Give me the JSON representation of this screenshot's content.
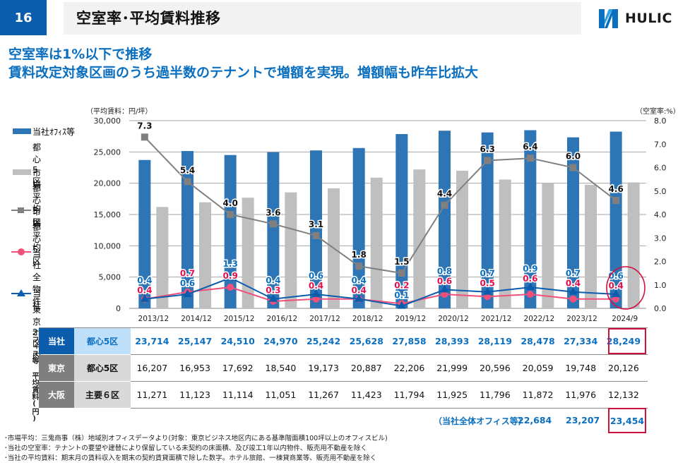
{
  "header": {
    "page_number": "16",
    "title": "空室率･平均賃料推移",
    "logo_text": "HULIC",
    "brand_color": "#0b5cad"
  },
  "headlines": [
    "空室率は1%以下で推移",
    "賃料改定対象区画のうち過半数のテナントで増額を実現。増額幅も昨年比拡大"
  ],
  "legend": [
    {
      "line1": "当社ｵﾌｨｽ等",
      "line2": "都心5区",
      "marker": "bar",
      "color": "#2e75b6"
    },
    {
      "line1": "市場平均",
      "line2": "都心5区",
      "marker": "bar",
      "color": "#bfbfbf"
    },
    {
      "line1": "市場平均",
      "line2": "都心5区",
      "marker": "square-line",
      "color": "#808080"
    },
    {
      "line1": "当社全物件",
      "line2": "",
      "marker": "circle-line",
      "color": "#f0507a"
    },
    {
      "line1": "当社",
      "line2": "東京23区内",
      "marker": "triangle-line",
      "color": "#0b5cad"
    }
  ],
  "chart_data": {
    "type": "bar",
    "title": "",
    "ylabel": "（平均賃料：円/坪）",
    "y2label": "（空室率:%）",
    "ylim": [
      0,
      30000
    ],
    "y2lim": [
      0,
      8.0
    ],
    "yticks": [
      "0",
      "5,000",
      "10,000",
      "15,000",
      "20,000",
      "25,000",
      "30,000"
    ],
    "y2ticks": [
      "0.0",
      "1.0",
      "2.0",
      "3.0",
      "4.0",
      "5.0",
      "6.0",
      "7.0",
      "8.0"
    ],
    "grid": true,
    "categories": [
      "2013/12",
      "2014/12",
      "2015/12",
      "2016/12",
      "2017/12",
      "2018/12",
      "2019/12",
      "2020/12",
      "2021/12",
      "2022/12",
      "2023/12",
      "2024/9"
    ],
    "series": [
      {
        "name": "当社ｵﾌｨｽ等 都心5区",
        "type": "bar",
        "axis": "left",
        "color": "#2e75b6",
        "values": [
          23714,
          25147,
          24510,
          24970,
          25242,
          25628,
          27858,
          28393,
          28119,
          28478,
          27334,
          28249
        ]
      },
      {
        "name": "市場平均 都心5区",
        "type": "bar",
        "axis": "left",
        "color": "#bfbfbf",
        "values": [
          16207,
          16953,
          17692,
          18540,
          19173,
          20887,
          22206,
          21999,
          20596,
          20059,
          19748,
          20126
        ]
      },
      {
        "name": "市場平均 都心5区 (空室率)",
        "type": "line",
        "axis": "right",
        "marker": "square",
        "color": "#808080",
        "values": [
          7.3,
          5.4,
          4.0,
          3.6,
          3.1,
          1.8,
          1.5,
          4.4,
          6.3,
          6.4,
          6.0,
          4.6
        ]
      },
      {
        "name": "当社全物件 (空室率)",
        "type": "line",
        "axis": "right",
        "marker": "circle",
        "color": "#f0507a",
        "values": [
          0.4,
          0.7,
          0.9,
          0.3,
          0.4,
          0.4,
          0.2,
          0.6,
          0.5,
          0.6,
          0.4,
          0.4
        ]
      },
      {
        "name": "当社 東京23区内 (空室率)",
        "type": "line",
        "axis": "right",
        "marker": "triangle",
        "color": "#0b5cad",
        "values": [
          0.4,
          0.6,
          1.3,
          0.4,
          0.6,
          0.4,
          0.1,
          0.8,
          0.7,
          0.9,
          0.7,
          0.6
        ]
      }
    ],
    "annotation": "2024/9 highlighted with red circle"
  },
  "table": {
    "side_label": "オフィス等 平均賃料(円)",
    "rows": [
      {
        "region": "当社",
        "area": "都心5区",
        "values": [
          "23,714",
          "25,147",
          "24,510",
          "24,970",
          "25,242",
          "25,628",
          "27,858",
          "28,393",
          "28,119",
          "28,478",
          "27,334",
          "28,249"
        ]
      },
      {
        "region": "東京",
        "area": "都心5区",
        "values": [
          "16,207",
          "16,953",
          "17,692",
          "18,540",
          "19,173",
          "20,887",
          "22,206",
          "21,999",
          "20,596",
          "20,059",
          "19,748",
          "20,126"
        ]
      },
      {
        "region": "大阪",
        "area": "主要６区",
        "values": [
          "11,271",
          "11,123",
          "11,114",
          "11,051",
          "11,267",
          "11,423",
          "11,794",
          "11,925",
          "11,796",
          "11,872",
          "11,976",
          "12,132"
        ]
      }
    ],
    "total_label": "（当社全体オフィス等）",
    "total_values": [
      "22,684",
      "23,207",
      "23,454"
    ]
  },
  "footnotes": [
    "･市場平均：三鬼商事（株）地域別オフィスデータより(対象：東京ビジネス地区内にある基準階面積100坪以上のオフィスビル)",
    "･当社の空室率：テナントの要望や建替により保留している未契約の床面積、及び竣工1年以内物件、販売用不動産を除く",
    "･当社の平均賃料：期末月の賃料収入を期末の契約賃貸面積で除した数字。ホテル旅館、一棟貸商業等、販売用不動産を除く"
  ]
}
